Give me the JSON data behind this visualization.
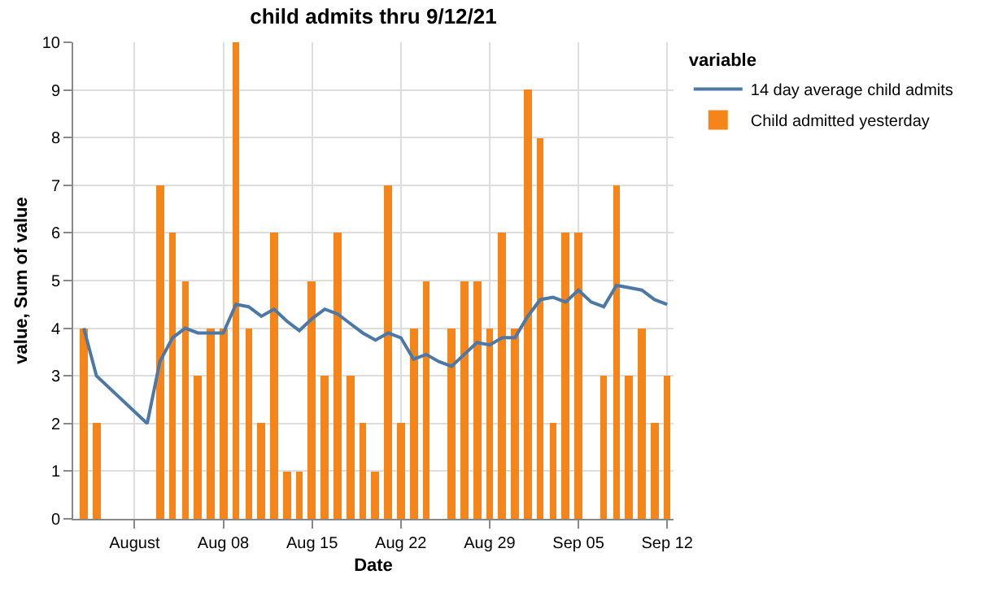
{
  "chart_data": {
    "type": "bar",
    "title": "child admits thru 9/12/21",
    "xlabel": "Date",
    "ylabel": "value, Sum of value",
    "legend_title": "variable",
    "xlim": [
      "--07-27T04:00",
      "--09-12T12:00"
    ],
    "xticks": [
      {
        "value": "--08-01",
        "label": "August"
      },
      {
        "value": "--08-08",
        "label": "Aug 08"
      },
      {
        "value": "--08-15",
        "label": "Aug 15"
      },
      {
        "value": "--08-22",
        "label": "Aug 22"
      },
      {
        "value": "--08-29",
        "label": "Aug 29"
      },
      {
        "value": "--09-05",
        "label": "Sep 05"
      },
      {
        "value": "--09-12",
        "label": "Sep 12"
      }
    ],
    "ylim": [
      0,
      10
    ],
    "yticks": [
      0,
      1,
      2,
      3,
      4,
      5,
      6,
      7,
      8,
      9,
      10
    ],
    "grid": true,
    "legend": "top right",
    "series": [
      {
        "name": "14 day average child admits",
        "type": "line",
        "color": "#4c78a8",
        "x": [
          "--07-28",
          "--07-29",
          "--08-02",
          "--08-03",
          "--08-04",
          "--08-05",
          "--08-06",
          "--08-07",
          "--08-08",
          "--08-09",
          "--08-10",
          "--08-11",
          "--08-12",
          "--08-13",
          "--08-14",
          "--08-15",
          "--08-16",
          "--08-17",
          "--08-18",
          "--08-19",
          "--08-20",
          "--08-21",
          "--08-22",
          "--08-23",
          "--08-24",
          "--08-25",
          "--08-26",
          "--08-27",
          "--08-28",
          "--08-29",
          "--08-30",
          "--08-31",
          "--09-01",
          "--09-02",
          "--09-03",
          "--09-04",
          "--09-05",
          "--09-06",
          "--09-07",
          "--09-08",
          "--09-09",
          "--09-10",
          "--09-11",
          "--09-12"
        ],
        "values": [
          4.0,
          3.0,
          2.0,
          3.3,
          3.8,
          4.0,
          3.9,
          3.9,
          3.9,
          4.5,
          4.45,
          4.25,
          4.4,
          4.15,
          3.95,
          4.2,
          4.4,
          4.3,
          4.1,
          3.9,
          3.75,
          3.9,
          3.8,
          3.35,
          3.45,
          3.3,
          3.2,
          3.45,
          3.7,
          3.65,
          3.8,
          3.8,
          4.25,
          4.6,
          4.65,
          4.55,
          4.8,
          4.55,
          4.45,
          4.9,
          4.85,
          4.8,
          4.6,
          4.5
        ]
      },
      {
        "name": "Child admitted yesterday",
        "color": "#f58518",
        "x": [
          "--07-28",
          "--07-29",
          "--08-03",
          "--08-04",
          "--08-05",
          "--08-06",
          "--08-07",
          "--08-08",
          "--08-09",
          "--08-10",
          "--08-11",
          "--08-12",
          "--08-13",
          "--08-14",
          "--08-15",
          "--08-16",
          "--08-17",
          "--08-18",
          "--08-19",
          "--08-20",
          "--08-21",
          "--08-22",
          "--08-23",
          "--08-24",
          "--08-26",
          "--08-27",
          "--08-28",
          "--08-29",
          "--08-30",
          "--08-31",
          "--09-01",
          "--09-02",
          "--09-03",
          "--09-04",
          "--09-05",
          "--09-07",
          "--09-08",
          "--09-09",
          "--09-10",
          "--09-11",
          "--09-12"
        ],
        "values": [
          4,
          2,
          7,
          6,
          5,
          3,
          4,
          4,
          10,
          4,
          2,
          6,
          1,
          1,
          5,
          3,
          6,
          3,
          2,
          1,
          7,
          2,
          4,
          5,
          4,
          5,
          5,
          4,
          6,
          4,
          9,
          8,
          2,
          6,
          6,
          3,
          7,
          3,
          4,
          2,
          3
        ]
      }
    ]
  }
}
